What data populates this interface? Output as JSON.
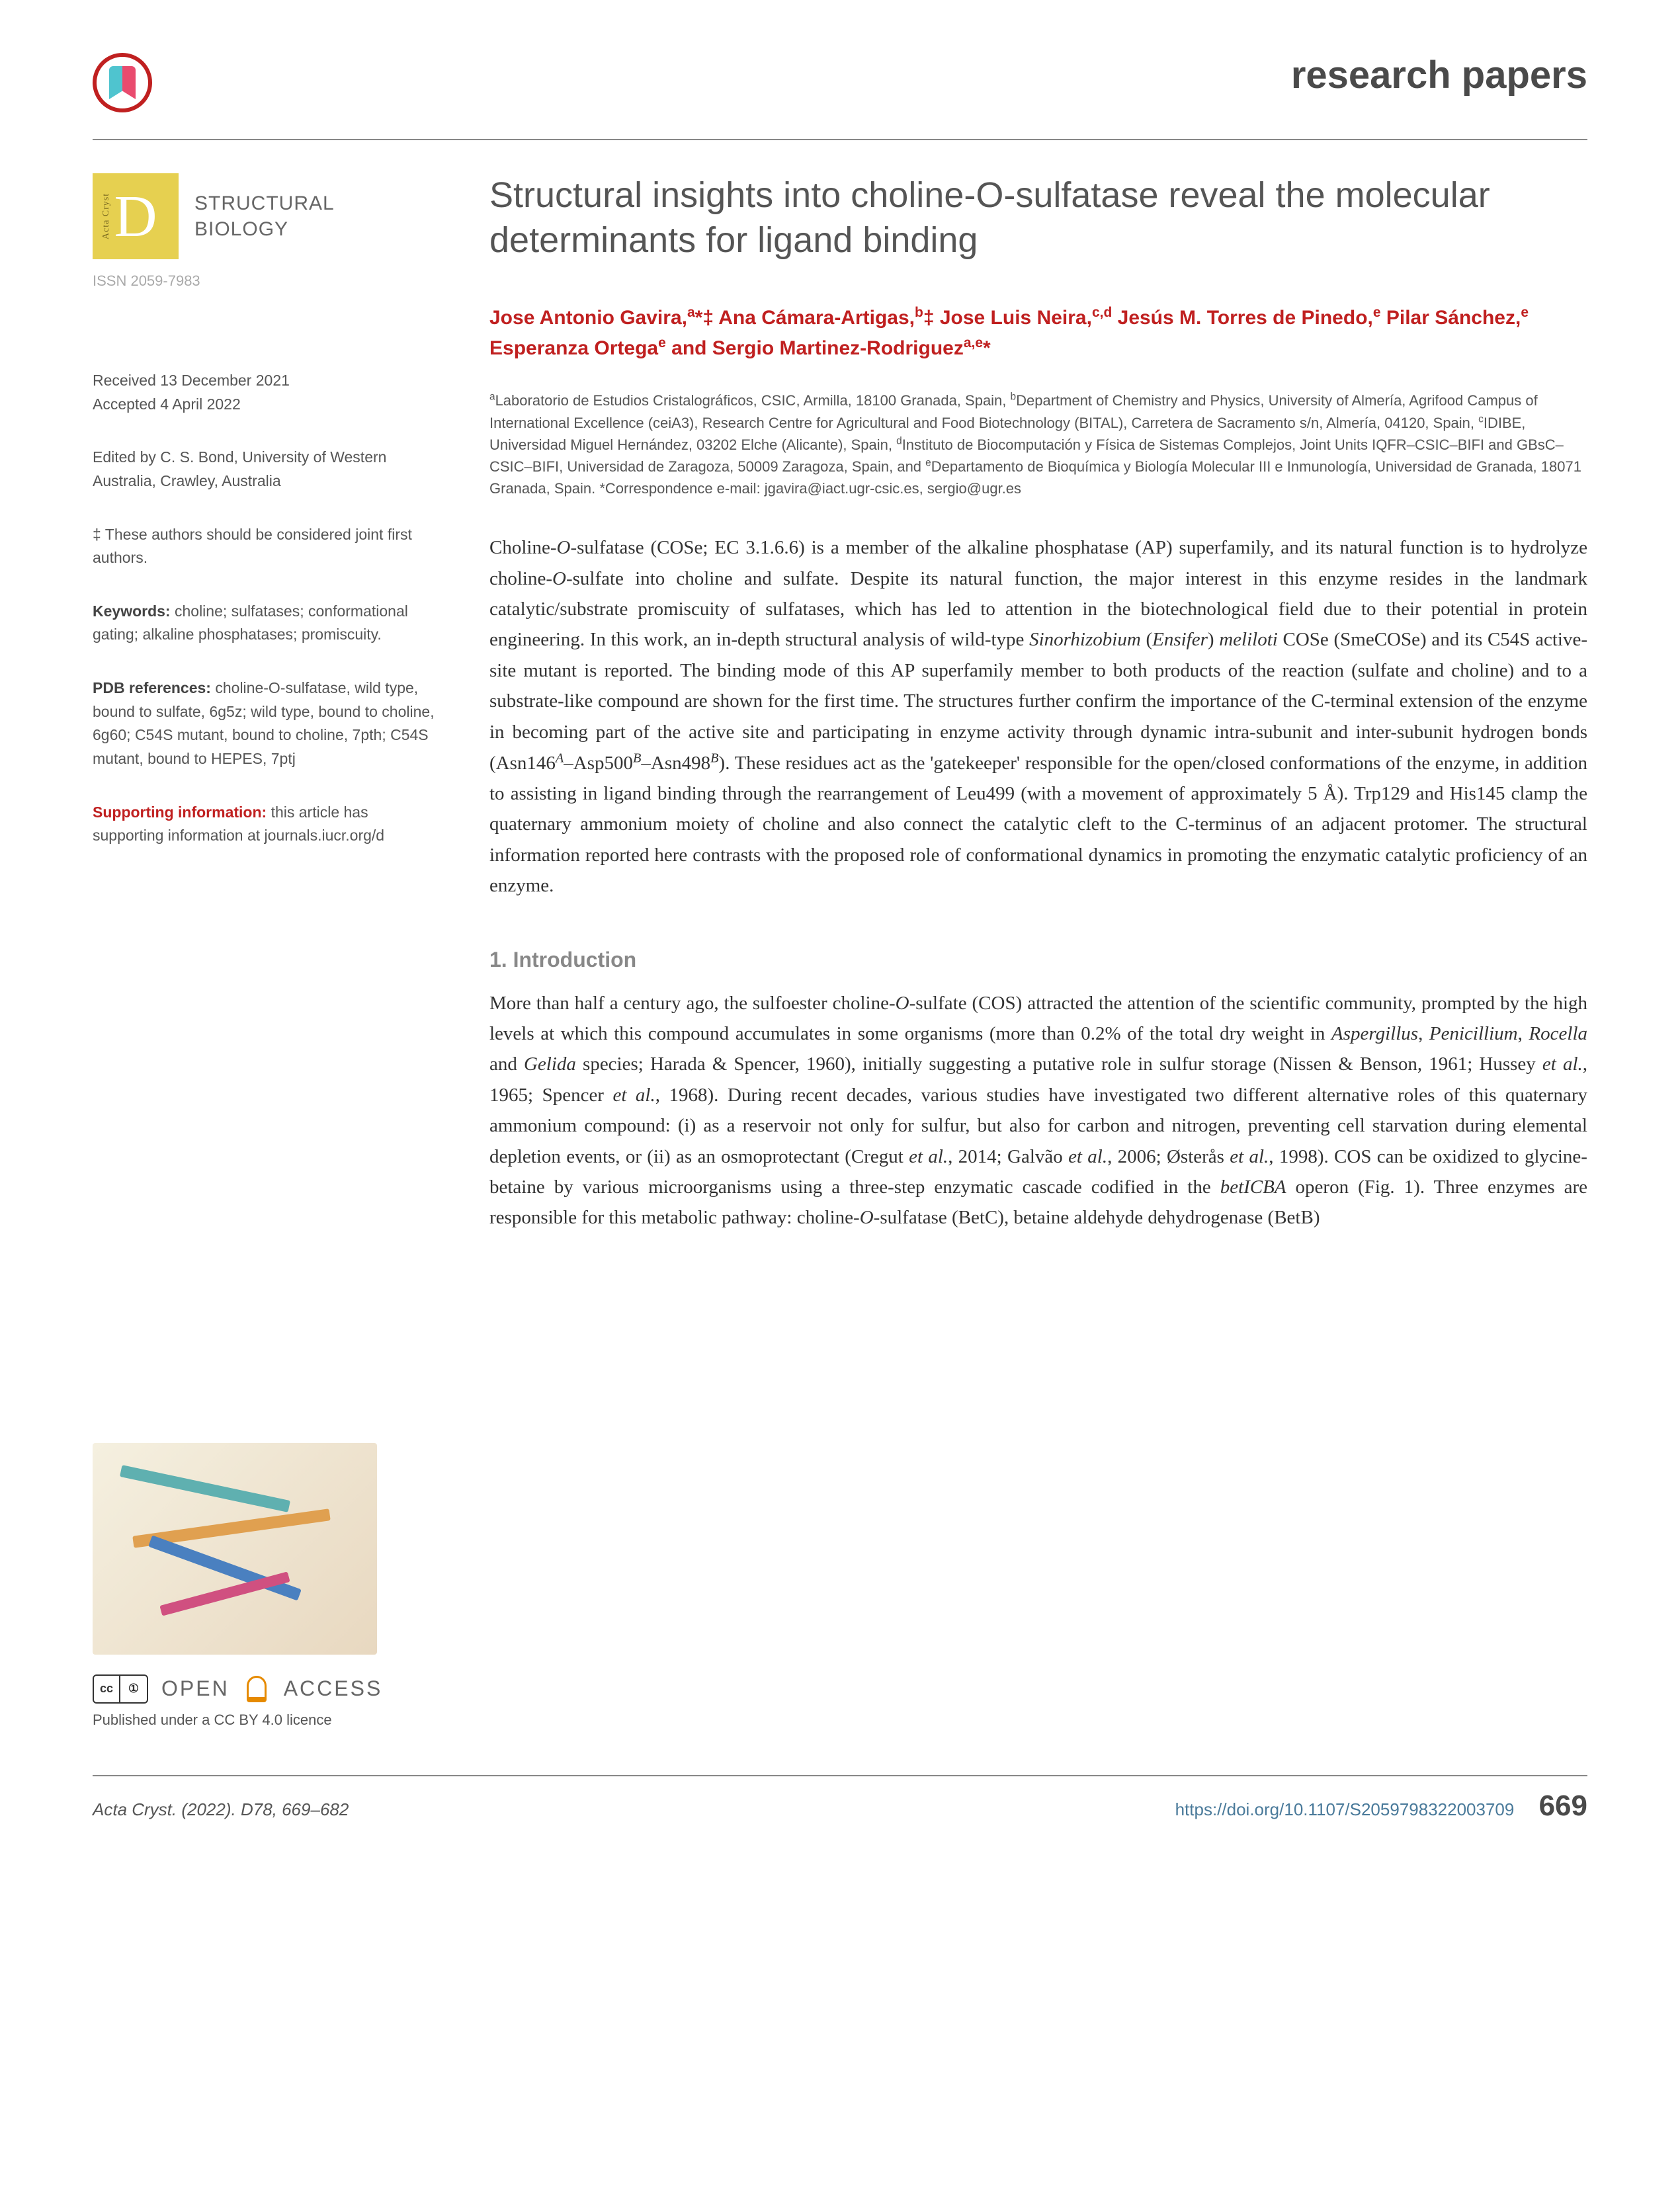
{
  "header": {
    "section": "research papers"
  },
  "journal": {
    "name_line1": "STRUCTURAL",
    "name_line2": "BIOLOGY",
    "letter": "D",
    "side_text": "Acta Cryst",
    "issn": "ISSN 2059-7983"
  },
  "sidebar": {
    "received": "Received 13 December 2021",
    "accepted": "Accepted 4 April 2022",
    "edited_by": "Edited by C. S. Bond, University of Western Australia, Crawley, Australia",
    "joint_first": "‡ These authors should be considered joint first authors.",
    "keywords_label": "Keywords:",
    "keywords": " choline; sulfatases; conformational gating; alkaline phosphatases; promiscuity.",
    "pdb_label": "PDB references:",
    "pdb": " choline-O-sulfatase, wild type, bound to sulfate, 6g5z; wild type, bound to choline, 6g60; C54S mutant, bound to choline, 7pth; C54S mutant, bound to HEPES, 7ptj",
    "supp_label": "Supporting information:",
    "supp": " this article has supporting information at journals.iucr.org/d",
    "open": "OPEN",
    "access": "ACCESS",
    "license": "Published under a CC BY 4.0 licence"
  },
  "paper": {
    "title": "Structural insights into choline-O-sulfatase reveal the molecular determinants for ligand binding",
    "authors_html": "Jose Antonio Gavira,<sup>a</sup>*‡ Ana Cámara-Artigas,<sup>b</sup>‡ Jose Luis Neira,<sup>c,d</sup> Jesús M. Torres de Pinedo,<sup>e</sup> Pilar Sánchez,<sup>e</sup> Esperanza Ortega<sup>e</sup> and Sergio Martinez-Rodriguez<sup>a,e</sup>*",
    "affiliations_html": "<sup>a</sup>Laboratorio de Estudios Cristalográficos, CSIC, Armilla, 18100 Granada, Spain, <sup>b</sup>Department of Chemistry and Physics, University of Almería, Agrifood Campus of International Excellence (ceiA3), Research Centre for Agricultural and Food Biotechnology (BITAL), Carretera de Sacramento s/n, Almería, 04120, Spain, <sup>c</sup>IDIBE, Universidad Miguel Hernández, 03202 Elche (Alicante), Spain, <sup>d</sup>Instituto de Biocomputación y Física de Sistemas Complejos, Joint Units IQFR–CSIC–BIFI and GBsC–CSIC–BIFI, Universidad de Zaragoza, 50009 Zaragoza, Spain, and <sup>e</sup>Departamento de Bioquímica y Biología Molecular III e Inmunología, Universidad de Granada, 18071 Granada, Spain. *Correspondence e-mail: jgavira@iact.ugr-csic.es, sergio@ugr.es",
    "abstract_html": "Choline-<i>O</i>-sulfatase (COSe; EC 3.1.6.6) is a member of the alkaline phosphatase (AP) superfamily, and its natural function is to hydrolyze choline-<i>O</i>-sulfate into choline and sulfate. Despite its natural function, the major interest in this enzyme resides in the landmark catalytic/substrate promiscuity of sulfatases, which has led to attention in the biotechnological field due to their potential in protein engineering. In this work, an in-depth structural analysis of wild-type <i>Sinorhizobium</i> (<i>Ensifer</i>) <i>meliloti</i> COSe (SmeCOSe) and its C54S active-site mutant is reported. The binding mode of this AP superfamily member to both products of the reaction (sulfate and choline) and to a substrate-like compound are shown for the first time. The structures further confirm the importance of the C-terminal extension of the enzyme in becoming part of the active site and participating in enzyme activity through dynamic intra-subunit and inter-subunit hydrogen bonds (Asn146<sup><i>A</i></sup>–Asp500<sup><i>B</i></sup>–Asn498<sup><i>B</i></sup>). These residues act as the 'gatekeeper' responsible for the open/closed conformations of the enzyme, in addition to assisting in ligand binding through the rearrangement of Leu499 (with a movement of approximately 5 Å). Trp129 and His145 clamp the quaternary ammonium moiety of choline and also connect the catalytic cleft to the C-terminus of an adjacent protomer. The structural information reported here contrasts with the proposed role of conformational dynamics in promoting the enzymatic catalytic proficiency of an enzyme.",
    "intro_heading": "1. Introduction",
    "intro_body_html": "More than half a century ago, the sulfoester choline-<i>O</i>-sulfate (COS) attracted the attention of the scientific community, prompted by the high levels at which this compound accumulates in some organisms (more than 0.2% of the total dry weight in <i>Aspergillus</i>, <i>Penicillium</i>, <i>Rocella</i> and <i>Gelida</i> species; Harada & Spencer, 1960), initially suggesting a putative role in sulfur storage (Nissen & Benson, 1961; Hussey <i>et al.</i>, 1965; Spencer <i>et al.</i>, 1968). During recent decades, various studies have investigated two different alternative roles of this quaternary ammonium compound: (i) as a reservoir not only for sulfur, but also for carbon and nitrogen, preventing cell starvation during elemental depletion events, or (ii) as an osmoprotectant (Cregut <i>et al.</i>, 2014; Galvão <i>et al.</i>, 2006; Østerås <i>et al.</i>, 1998). COS can be oxidized to glycine-betaine by various microorganisms using a three-step enzymatic cascade codified in the <i>betICBA</i> operon (Fig. 1). Three enzymes are responsible for this metabolic pathway: choline-<i>O</i>-sulfatase (BetC), betaine aldehyde dehydrogenase (BetB)"
  },
  "footer": {
    "citation": "Acta Cryst. (2022). D78, 669–682",
    "doi": "https://doi.org/10.1107/S2059798322003709",
    "page": "669"
  },
  "colors": {
    "accent_red": "#c02020",
    "journal_yellow": "#e6d050",
    "oa_orange": "#e68a00",
    "link_blue": "#4a7a9a",
    "heading_grey": "#888888"
  }
}
